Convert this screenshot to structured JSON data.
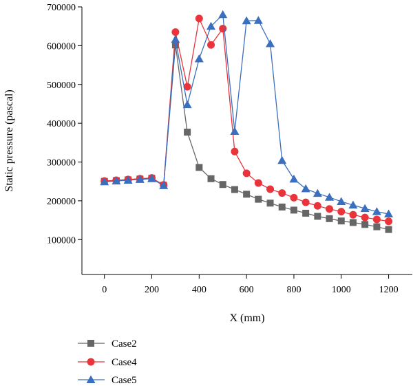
{
  "chart_data": {
    "type": "line",
    "title": "",
    "xlabel": "X (mm)",
    "ylabel": "Static pressure (pascal)",
    "xlim": [
      -95,
      1300
    ],
    "ylim": [
      10000,
      700000
    ],
    "x_ticks": [
      0,
      200,
      400,
      600,
      800,
      1000,
      1200
    ],
    "x_tick_labels": [
      "0",
      "200",
      "400",
      "600",
      "800",
      "1000",
      "1200"
    ],
    "y_ticks": [
      100000,
      200000,
      300000,
      400000,
      500000,
      600000,
      700000
    ],
    "y_tick_labels": [
      "100000",
      "200000",
      "300000",
      "400000",
      "500000",
      "600000",
      "700000"
    ],
    "grid": false,
    "legend_position": "bottom-left",
    "series": [
      {
        "name": "Case2",
        "color": "#666666",
        "marker": "square",
        "x": [
          0,
          50,
          100,
          150,
          200,
          250,
          300,
          350,
          400,
          450,
          500,
          550,
          600,
          650,
          700,
          750,
          800,
          850,
          900,
          950,
          1000,
          1050,
          1100,
          1150,
          1200
        ],
        "values": [
          250000,
          252000,
          254000,
          256000,
          258000,
          240000,
          602000,
          377000,
          286000,
          257000,
          242000,
          229000,
          217000,
          204000,
          194000,
          184000,
          176000,
          168000,
          160000,
          154000,
          148000,
          144000,
          139000,
          133000,
          126000
        ]
      },
      {
        "name": "Case4",
        "color": "#e8343a",
        "marker": "circle",
        "x": [
          0,
          50,
          100,
          150,
          200,
          250,
          300,
          350,
          400,
          450,
          500,
          550,
          600,
          650,
          700,
          750,
          800,
          850,
          900,
          950,
          1000,
          1050,
          1100,
          1150,
          1200
        ],
        "values": [
          251000,
          253000,
          255000,
          257000,
          259000,
          241000,
          635000,
          494000,
          670000,
          602000,
          644000,
          327000,
          271000,
          246000,
          230000,
          220000,
          208000,
          196000,
          187000,
          179000,
          172000,
          164000,
          157000,
          152000,
          147000
        ]
      },
      {
        "name": "Case5",
        "color": "#3a6fbf",
        "marker": "triangle",
        "x": [
          0,
          50,
          100,
          150,
          200,
          250,
          300,
          350,
          400,
          450,
          500,
          550,
          600,
          650,
          700,
          750,
          800,
          850,
          900,
          950,
          1000,
          1050,
          1100,
          1150,
          1200
        ],
        "values": [
          249000,
          251000,
          253000,
          255000,
          257000,
          239000,
          616000,
          448000,
          566000,
          650000,
          680000,
          379000,
          664000,
          665000,
          605000,
          304000,
          256000,
          231000,
          219000,
          209000,
          198000,
          189000,
          180000,
          172000,
          166000
        ]
      }
    ]
  }
}
